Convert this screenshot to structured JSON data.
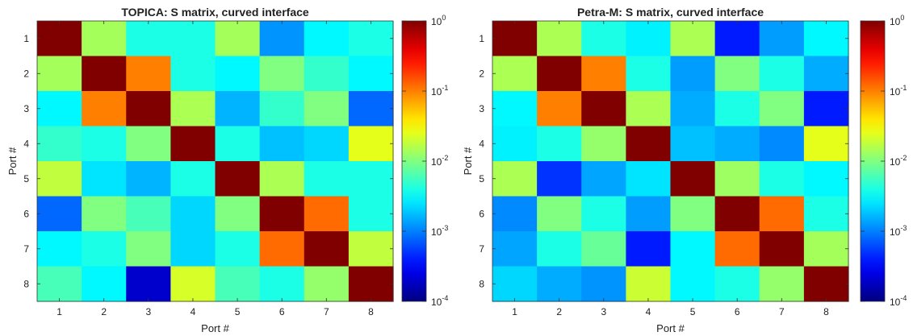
{
  "chart_data": [
    {
      "type": "heatmap",
      "title": "TOPICA: S matrix, curved interface",
      "xlabel": "Port #",
      "ylabel": "Port #",
      "x_ticks": [
        "1",
        "2",
        "3",
        "4",
        "5",
        "6",
        "7",
        "8"
      ],
      "y_ticks": [
        "1",
        "2",
        "3",
        "4",
        "5",
        "6",
        "7",
        "8"
      ],
      "colorbar": {
        "scale": "log",
        "range": [
          0.0001,
          1
        ],
        "tick_base": "10",
        "tick_exponents": [
          "0",
          "-1",
          "-2",
          "-3",
          "-4"
        ]
      },
      "colormap": "jet",
      "values": [
        [
          1,
          0.014,
          0.004,
          0.004,
          0.014,
          0.0012,
          0.003,
          0.004
        ],
        [
          0.014,
          1,
          0.1,
          0.004,
          0.003,
          0.01,
          0.005,
          0.003
        ],
        [
          0.003,
          0.1,
          1,
          0.015,
          0.0016,
          0.005,
          0.01,
          0.0008
        ],
        [
          0.005,
          0.004,
          0.01,
          1,
          0.004,
          0.0018,
          0.0022,
          0.025
        ],
        [
          0.018,
          0.0025,
          0.0016,
          0.004,
          1,
          0.015,
          0.004,
          0.004
        ],
        [
          0.0008,
          0.01,
          0.006,
          0.0022,
          0.01,
          1,
          0.12,
          0.004
        ],
        [
          0.003,
          0.004,
          0.01,
          0.0022,
          0.004,
          0.12,
          1,
          0.018
        ],
        [
          0.006,
          0.003,
          0.0002,
          0.022,
          0.006,
          0.004,
          0.012,
          1
        ]
      ]
    },
    {
      "type": "heatmap",
      "title": "Petra-M: S matrix, curved interface",
      "xlabel": "Port #",
      "ylabel": "Port #",
      "x_ticks": [
        "1",
        "2",
        "3",
        "4",
        "5",
        "6",
        "7",
        "8"
      ],
      "y_ticks": [
        "1",
        "2",
        "3",
        "4",
        "5",
        "6",
        "7",
        "8"
      ],
      "colorbar": {
        "scale": "log",
        "range": [
          0.0001,
          1
        ],
        "tick_base": "10",
        "tick_exponents": [
          "0",
          "-1",
          "-2",
          "-3",
          "-4"
        ]
      },
      "colormap": "jet",
      "values": [
        [
          1,
          0.015,
          0.004,
          0.0028,
          0.015,
          0.0004,
          0.0013,
          0.003
        ],
        [
          0.015,
          1,
          0.1,
          0.004,
          0.0013,
          0.01,
          0.004,
          0.0015
        ],
        [
          0.003,
          0.1,
          1,
          0.015,
          0.0015,
          0.004,
          0.01,
          0.0004
        ],
        [
          0.0028,
          0.004,
          0.012,
          1,
          0.0018,
          0.0015,
          0.0011,
          0.025
        ],
        [
          0.015,
          0.0005,
          0.0014,
          0.0025,
          1,
          0.013,
          0.004,
          0.003
        ],
        [
          0.0011,
          0.01,
          0.004,
          0.0013,
          0.01,
          1,
          0.12,
          0.004
        ],
        [
          0.0014,
          0.004,
          0.008,
          0.0004,
          0.003,
          0.12,
          1,
          0.014
        ],
        [
          0.0022,
          0.0015,
          0.0012,
          0.02,
          0.003,
          0.004,
          0.012,
          1
        ]
      ]
    }
  ]
}
